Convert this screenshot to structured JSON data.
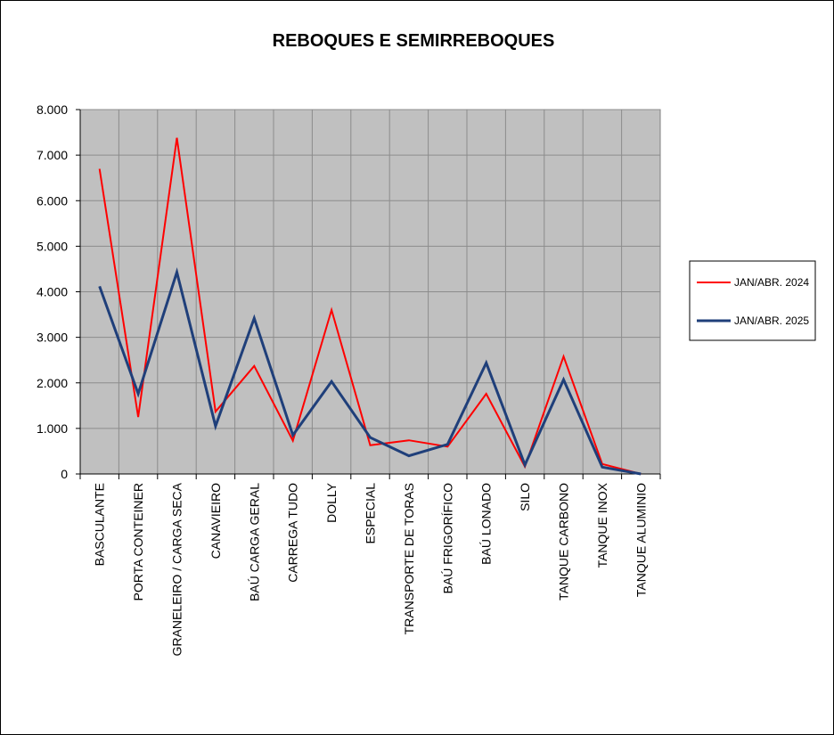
{
  "chart_data": {
    "type": "line",
    "title": "REBOQUES  E SEMIRREBOQUES",
    "xlabel": "",
    "ylabel": "",
    "ylim": [
      0,
      8000
    ],
    "yticks": [
      0,
      1000,
      2000,
      3000,
      4000,
      5000,
      6000,
      7000,
      8000
    ],
    "ytick_labels": [
      "0",
      "1.000",
      "2.000",
      "3.000",
      "4.000",
      "5.000",
      "6.000",
      "7.000",
      "8.000"
    ],
    "grid": true,
    "plot_background": "#C0C0C0",
    "legend_position": "right",
    "categories": [
      "BASCULANTE",
      "PORTA CONTEINER",
      "GRANELEIRO / CARGA SECA",
      "CANAVIEIRO",
      "BAÚ CARGA GERAL",
      "CARREGA TUDO",
      "DOLLY",
      "ESPECIAL",
      "TRANSPORTE DE TORAS",
      "BAÚ FRIGORÍFICO",
      "BAÚ LONADO",
      "SILO",
      "TANQUE CARBONO",
      "TANQUE INOX",
      "TANQUE ALUMINIO"
    ],
    "series": [
      {
        "name": "JAN/ABR. 2024",
        "color": "#FF0000",
        "values": [
          6700,
          1250,
          7380,
          1370,
          2370,
          730,
          3600,
          630,
          740,
          600,
          1760,
          160,
          2580,
          220,
          0
        ]
      },
      {
        "name": "JAN/ABR. 2025",
        "color": "#1F3F7A",
        "values": [
          4120,
          1760,
          4430,
          1050,
          3420,
          850,
          2030,
          800,
          400,
          650,
          2440,
          200,
          2070,
          150,
          0
        ]
      }
    ]
  }
}
